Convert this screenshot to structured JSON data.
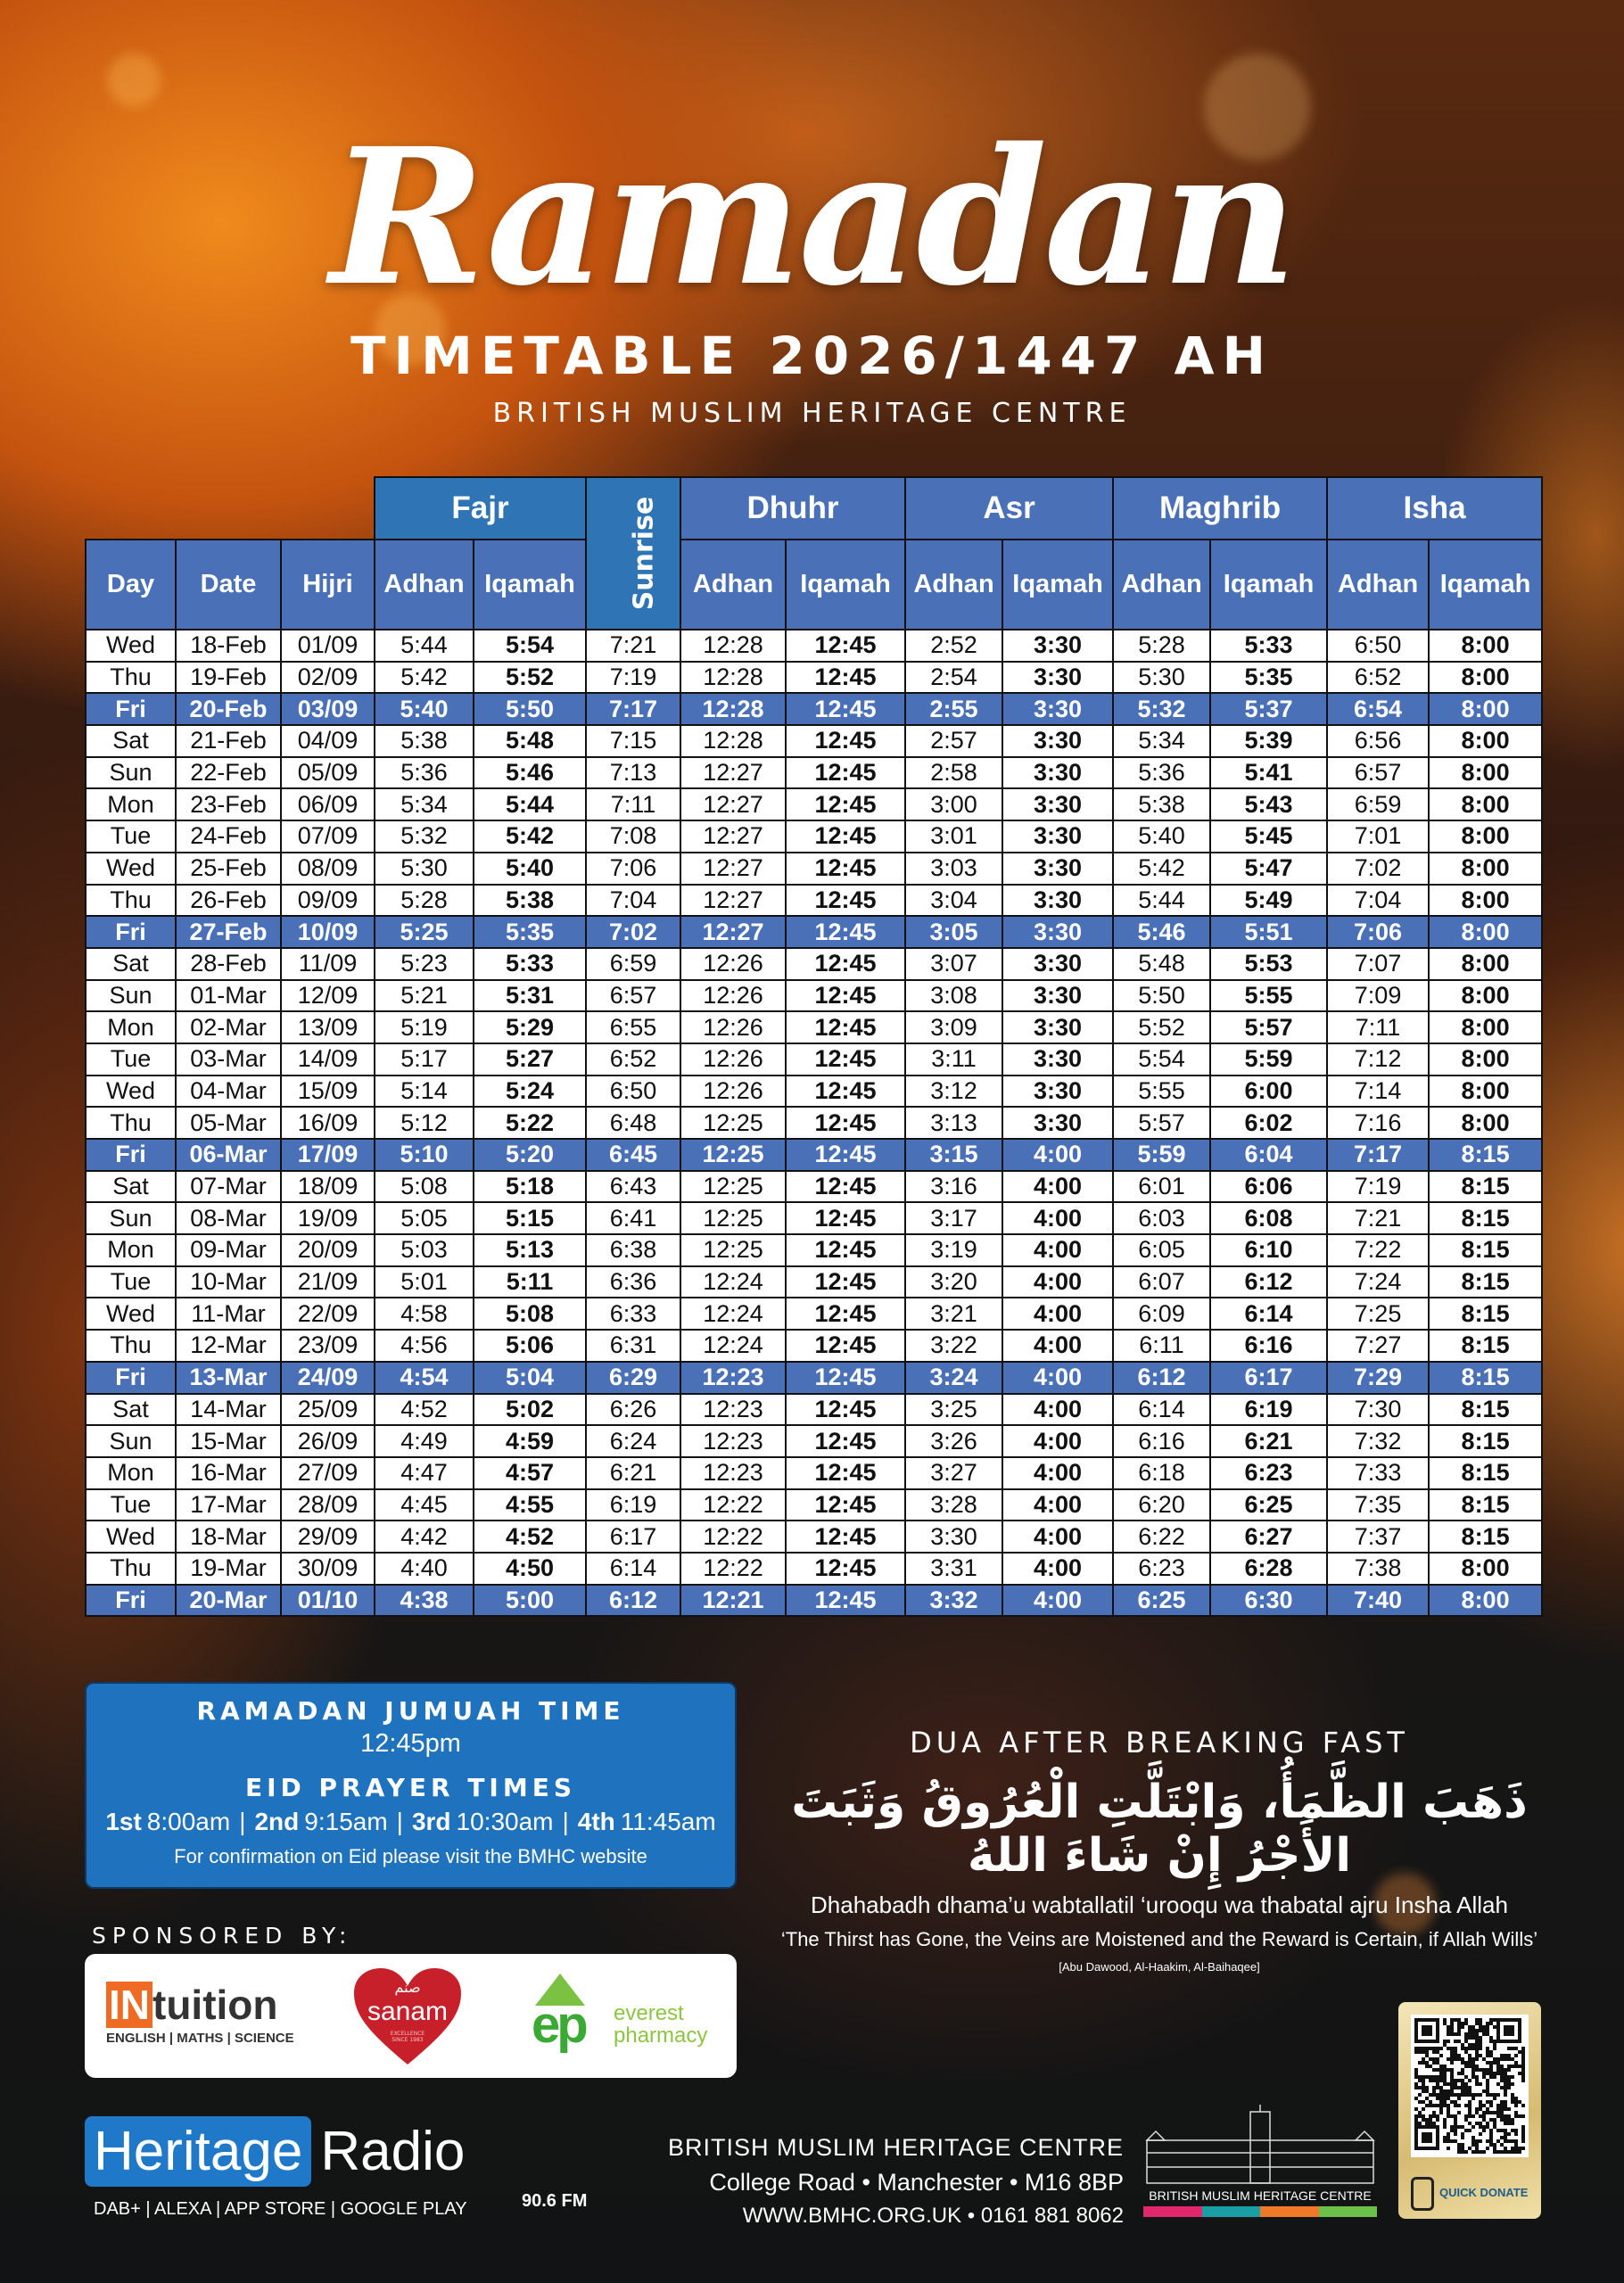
{
  "header": {
    "title": "Ramadan",
    "subtitle": "TIMETABLE 2026/1447 AH",
    "organisation": "BRITISH MUSLIM HERITAGE CENTRE"
  },
  "colors": {
    "header_blue": "#4a70b8",
    "group_blue": "#2f74b5",
    "friday_row": "#4a70b8",
    "info_box": "#1f72bd"
  },
  "timetable": {
    "groups": [
      "Fajr",
      "Sunrise",
      "Dhuhr",
      "Asr",
      "Maghrib",
      "Isha"
    ],
    "columns": [
      "Day",
      "Date",
      "Hijri",
      "Adhan",
      "Iqamah",
      "Adhan",
      "Iqamah",
      "Adhan",
      "Iqamah",
      "Adhan",
      "Iqamah",
      "Adhan",
      "Iqamah"
    ],
    "rows": [
      [
        "Wed",
        "18-Feb",
        "01/09",
        "5:44",
        "5:54",
        "7:21",
        "12:28",
        "12:45",
        "2:52",
        "3:30",
        "5:28",
        "5:33",
        "6:50",
        "8:00"
      ],
      [
        "Thu",
        "19-Feb",
        "02/09",
        "5:42",
        "5:52",
        "7:19",
        "12:28",
        "12:45",
        "2:54",
        "3:30",
        "5:30",
        "5:35",
        "6:52",
        "8:00"
      ],
      [
        "Fri",
        "20-Feb",
        "03/09",
        "5:40",
        "5:50",
        "7:17",
        "12:28",
        "12:45",
        "2:55",
        "3:30",
        "5:32",
        "5:37",
        "6:54",
        "8:00"
      ],
      [
        "Sat",
        "21-Feb",
        "04/09",
        "5:38",
        "5:48",
        "7:15",
        "12:28",
        "12:45",
        "2:57",
        "3:30",
        "5:34",
        "5:39",
        "6:56",
        "8:00"
      ],
      [
        "Sun",
        "22-Feb",
        "05/09",
        "5:36",
        "5:46",
        "7:13",
        "12:27",
        "12:45",
        "2:58",
        "3:30",
        "5:36",
        "5:41",
        "6:57",
        "8:00"
      ],
      [
        "Mon",
        "23-Feb",
        "06/09",
        "5:34",
        "5:44",
        "7:11",
        "12:27",
        "12:45",
        "3:00",
        "3:30",
        "5:38",
        "5:43",
        "6:59",
        "8:00"
      ],
      [
        "Tue",
        "24-Feb",
        "07/09",
        "5:32",
        "5:42",
        "7:08",
        "12:27",
        "12:45",
        "3:01",
        "3:30",
        "5:40",
        "5:45",
        "7:01",
        "8:00"
      ],
      [
        "Wed",
        "25-Feb",
        "08/09",
        "5:30",
        "5:40",
        "7:06",
        "12:27",
        "12:45",
        "3:03",
        "3:30",
        "5:42",
        "5:47",
        "7:02",
        "8:00"
      ],
      [
        "Thu",
        "26-Feb",
        "09/09",
        "5:28",
        "5:38",
        "7:04",
        "12:27",
        "12:45",
        "3:04",
        "3:30",
        "5:44",
        "5:49",
        "7:04",
        "8:00"
      ],
      [
        "Fri",
        "27-Feb",
        "10/09",
        "5:25",
        "5:35",
        "7:02",
        "12:27",
        "12:45",
        "3:05",
        "3:30",
        "5:46",
        "5:51",
        "7:06",
        "8:00"
      ],
      [
        "Sat",
        "28-Feb",
        "11/09",
        "5:23",
        "5:33",
        "6:59",
        "12:26",
        "12:45",
        "3:07",
        "3:30",
        "5:48",
        "5:53",
        "7:07",
        "8:00"
      ],
      [
        "Sun",
        "01-Mar",
        "12/09",
        "5:21",
        "5:31",
        "6:57",
        "12:26",
        "12:45",
        "3:08",
        "3:30",
        "5:50",
        "5:55",
        "7:09",
        "8:00"
      ],
      [
        "Mon",
        "02-Mar",
        "13/09",
        "5:19",
        "5:29",
        "6:55",
        "12:26",
        "12:45",
        "3:09",
        "3:30",
        "5:52",
        "5:57",
        "7:11",
        "8:00"
      ],
      [
        "Tue",
        "03-Mar",
        "14/09",
        "5:17",
        "5:27",
        "6:52",
        "12:26",
        "12:45",
        "3:11",
        "3:30",
        "5:54",
        "5:59",
        "7:12",
        "8:00"
      ],
      [
        "Wed",
        "04-Mar",
        "15/09",
        "5:14",
        "5:24",
        "6:50",
        "12:26",
        "12:45",
        "3:12",
        "3:30",
        "5:55",
        "6:00",
        "7:14",
        "8:00"
      ],
      [
        "Thu",
        "05-Mar",
        "16/09",
        "5:12",
        "5:22",
        "6:48",
        "12:25",
        "12:45",
        "3:13",
        "3:30",
        "5:57",
        "6:02",
        "7:16",
        "8:00"
      ],
      [
        "Fri",
        "06-Mar",
        "17/09",
        "5:10",
        "5:20",
        "6:45",
        "12:25",
        "12:45",
        "3:15",
        "4:00",
        "5:59",
        "6:04",
        "7:17",
        "8:15"
      ],
      [
        "Sat",
        "07-Mar",
        "18/09",
        "5:08",
        "5:18",
        "6:43",
        "12:25",
        "12:45",
        "3:16",
        "4:00",
        "6:01",
        "6:06",
        "7:19",
        "8:15"
      ],
      [
        "Sun",
        "08-Mar",
        "19/09",
        "5:05",
        "5:15",
        "6:41",
        "12:25",
        "12:45",
        "3:17",
        "4:00",
        "6:03",
        "6:08",
        "7:21",
        "8:15"
      ],
      [
        "Mon",
        "09-Mar",
        "20/09",
        "5:03",
        "5:13",
        "6:38",
        "12:25",
        "12:45",
        "3:19",
        "4:00",
        "6:05",
        "6:10",
        "7:22",
        "8:15"
      ],
      [
        "Tue",
        "10-Mar",
        "21/09",
        "5:01",
        "5:11",
        "6:36",
        "12:24",
        "12:45",
        "3:20",
        "4:00",
        "6:07",
        "6:12",
        "7:24",
        "8:15"
      ],
      [
        "Wed",
        "11-Mar",
        "22/09",
        "4:58",
        "5:08",
        "6:33",
        "12:24",
        "12:45",
        "3:21",
        "4:00",
        "6:09",
        "6:14",
        "7:25",
        "8:15"
      ],
      [
        "Thu",
        "12-Mar",
        "23/09",
        "4:56",
        "5:06",
        "6:31",
        "12:24",
        "12:45",
        "3:22",
        "4:00",
        "6:11",
        "6:16",
        "7:27",
        "8:15"
      ],
      [
        "Fri",
        "13-Mar",
        "24/09",
        "4:54",
        "5:04",
        "6:29",
        "12:23",
        "12:45",
        "3:24",
        "4:00",
        "6:12",
        "6:17",
        "7:29",
        "8:15"
      ],
      [
        "Sat",
        "14-Mar",
        "25/09",
        "4:52",
        "5:02",
        "6:26",
        "12:23",
        "12:45",
        "3:25",
        "4:00",
        "6:14",
        "6:19",
        "7:30",
        "8:15"
      ],
      [
        "Sun",
        "15-Mar",
        "26/09",
        "4:49",
        "4:59",
        "6:24",
        "12:23",
        "12:45",
        "3:26",
        "4:00",
        "6:16",
        "6:21",
        "7:32",
        "8:15"
      ],
      [
        "Mon",
        "16-Mar",
        "27/09",
        "4:47",
        "4:57",
        "6:21",
        "12:23",
        "12:45",
        "3:27",
        "4:00",
        "6:18",
        "6:23",
        "7:33",
        "8:15"
      ],
      [
        "Tue",
        "17-Mar",
        "28/09",
        "4:45",
        "4:55",
        "6:19",
        "12:22",
        "12:45",
        "3:28",
        "4:00",
        "6:20",
        "6:25",
        "7:35",
        "8:15"
      ],
      [
        "Wed",
        "18-Mar",
        "29/09",
        "4:42",
        "4:52",
        "6:17",
        "12:22",
        "12:45",
        "3:30",
        "4:00",
        "6:22",
        "6:27",
        "7:37",
        "8:15"
      ],
      [
        "Thu",
        "19-Mar",
        "30/09",
        "4:40",
        "4:50",
        "6:14",
        "12:22",
        "12:45",
        "3:31",
        "4:00",
        "6:23",
        "6:28",
        "7:38",
        "8:00"
      ],
      [
        "Fri",
        "20-Mar",
        "01/10",
        "4:38",
        "5:00",
        "6:12",
        "12:21",
        "12:45",
        "3:32",
        "4:00",
        "6:25",
        "6:30",
        "7:40",
        "8:00"
      ]
    ]
  },
  "info_box": {
    "jumuah_heading": "RAMADAN JUMUAH TIME",
    "jumuah_time": "12:45pm",
    "eid_heading": "EID PRAYER TIMES",
    "eid_times": [
      {
        "label": "1st",
        "time": "8:00am"
      },
      {
        "label": "2nd",
        "time": "9:15am"
      },
      {
        "label": "3rd",
        "time": "10:30am"
      },
      {
        "label": "4th",
        "time": "11:45am"
      }
    ],
    "separator": "|",
    "note": "For confirmation on Eid please visit the BMHC website"
  },
  "sponsors": {
    "label": "SPONSORED BY:",
    "intuition": {
      "brand_in": "IN",
      "brand_rest": "tuition",
      "tagline": "ENGLISH | MATHS | SCIENCE"
    },
    "sanam": {
      "arabic": "صنم",
      "name": "sanam",
      "tagline": "EXCELLENCE SINCE 1983"
    },
    "everest": {
      "mark": "ep",
      "line1": "everest",
      "line2": "pharmacy"
    }
  },
  "dua": {
    "heading": "DUA AFTER BREAKING FAST",
    "arabic": "ذَهَبَ الظَّمَأُ، وَابْتَلَّتِ الْعُرُوقُ وَثَبَتَ الأَجْرُ إِنْ شَاءَ اللهُ",
    "transliteration": "Dhahabadh dhama’u wabtallatil ‘urooqu wa thabatal ajru Insha Allah",
    "translation": "‘The Thirst has Gone, the Veins are Moistened and the Reward is Certain, if Allah Wills’",
    "reference": "[Abu Dawood, Al-Haakim, Al-Baihaqee]"
  },
  "radio": {
    "name_part1": "Heritage",
    "name_part2": "Radio",
    "frequency": "90.6 FM",
    "platforms": "DAB+ | ALEXA | APP STORE | GOOGLE PLAY"
  },
  "footer": {
    "org_name": "BRITISH MUSLIM HERITAGE CENTRE",
    "address": "College Road • Manchester • M16 8BP",
    "contact": "WWW.BMHC.ORG.UK • 0161 881 8062",
    "logo_text": "BRITISH MUSLIM HERITAGE CENTRE",
    "logo_stripe_colors": [
      "#e0286e",
      "#1a9ea5",
      "#f07a28",
      "#6cc04a"
    ],
    "donate_label": "QUICK DONATE"
  }
}
